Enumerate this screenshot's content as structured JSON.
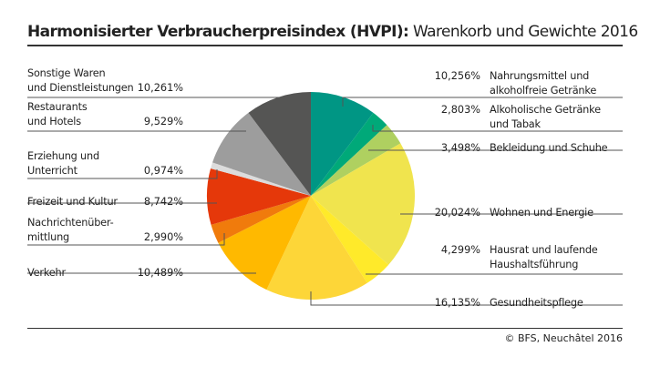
{
  "title_bold": "Harmonisierter Verbraucherpreisindex (HVPI):",
  "title_rest": " Warenkorb und Gewichte 2016",
  "source": "© BFS, Neuchâtel 2016",
  "chart_data": {
    "type": "pie",
    "title": "Harmonisierter Verbraucherpreisindex (HVPI): Warenkorb und Gewichte 2016",
    "start": "top",
    "direction": "clockwise",
    "slices": [
      {
        "name": "Nahrungsmittel und alkoholfreie Getränke",
        "value": 10.256,
        "label": "10,256%",
        "color": "#009684",
        "side": "right"
      },
      {
        "name": "Alkoholische Getränke und Tabak",
        "value": 2.803,
        "label": "2,803%",
        "color": "#00a979",
        "side": "right"
      },
      {
        "name": "Bekleidung und Schuhe",
        "value": 3.498,
        "label": "3,498%",
        "color": "#afd060",
        "side": "right"
      },
      {
        "name": "Wohnen und Energie",
        "value": 20.024,
        "label": "20,024%",
        "color": "#f0e44e",
        "side": "right"
      },
      {
        "name": "Hausrat und laufende Haushaltsführung",
        "value": 4.299,
        "label": "4,299%",
        "color": "#ffea2a",
        "side": "right"
      },
      {
        "name": "Gesundheitspflege",
        "value": 16.135,
        "label": "16,135%",
        "color": "#fdd638",
        "side": "right"
      },
      {
        "name": "Verkehr",
        "value": 10.489,
        "label": "10,489%",
        "color": "#ffb900",
        "side": "left"
      },
      {
        "name": "Nachrichtenüber-mittlung",
        "value": 2.99,
        "label": "2,990%",
        "color": "#f07b0c",
        "side": "left"
      },
      {
        "name": "Freizeit und Kultur",
        "value": 8.742,
        "label": "8,742%",
        "color": "#e5380a",
        "side": "left"
      },
      {
        "name": "Erziehung und Unterricht",
        "value": 0.974,
        "label": "0,974%",
        "color": "#dcdcdc",
        "side": "left"
      },
      {
        "name": "Restaurants und Hotels",
        "value": 9.529,
        "label": "9,529%",
        "color": "#9d9d9d",
        "side": "left"
      },
      {
        "name": "Sonstige Waren und Dienstleistungen",
        "value": 10.261,
        "label": "10,261%",
        "color": "#555554",
        "side": "left"
      }
    ],
    "label_lines": [
      [
        "Nahrungsmittel und",
        "alkoholfreie Getränke"
      ],
      [
        "Alkoholische Getränke",
        "und Tabak"
      ],
      [
        "Bekleidung und Schuhe"
      ],
      [
        "Wohnen und Energie"
      ],
      [
        "Hausrat und laufende",
        "Haushaltsführung"
      ],
      [
        "Gesundheitspflege"
      ],
      [
        "Verkehr"
      ],
      [
        "Nachrichtenüber-",
        "mittlung"
      ],
      [
        "Freizeit und Kultur"
      ],
      [
        "Erziehung und",
        "Unterricht"
      ],
      [
        "Restaurants",
        "und Hotels"
      ],
      [
        "Sonstige Waren",
        "und Dienstleistungen"
      ]
    ]
  }
}
